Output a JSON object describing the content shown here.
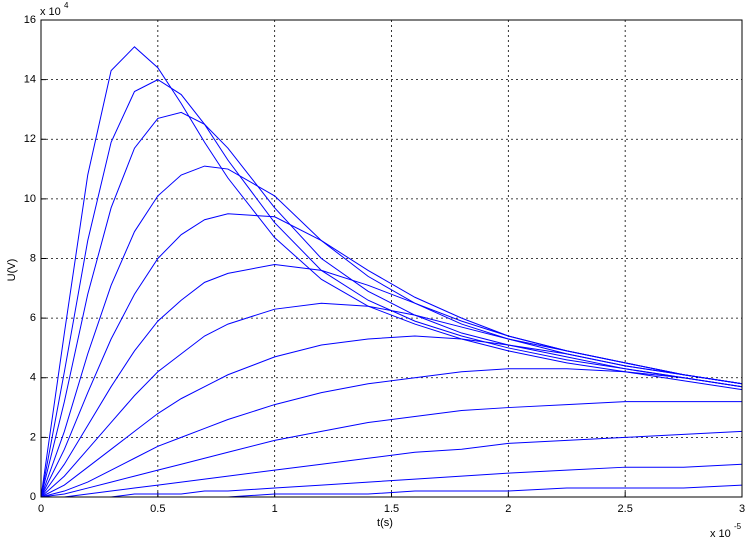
{
  "chart_data": {
    "type": "line",
    "x_label": "t(s)",
    "y_label": "U(V)",
    "x_multiplier": "x 10",
    "x_exponent": "-5",
    "y_multiplier": "x 10",
    "y_exponent": "4",
    "color": "#0000ff",
    "grid": true,
    "xlim": [
      0,
      3
    ],
    "xticks": [
      0,
      0.5,
      1,
      1.5,
      2,
      2.5,
      3
    ],
    "ylim": [
      0,
      16
    ],
    "yticks": [
      0,
      2,
      4,
      6,
      8,
      10,
      12,
      14,
      16
    ],
    "x": [
      0,
      0.1,
      0.2,
      0.3,
      0.4,
      0.5,
      0.6,
      0.7,
      0.8,
      1.0,
      1.2,
      1.4,
      1.6,
      1.8,
      2.0,
      2.25,
      2.5,
      2.75,
      3.0
    ],
    "series": [
      {
        "values": [
          0,
          5.5,
          10.8,
          14.3,
          15.1,
          14.4,
          13.2,
          11.9,
          10.7,
          8.7,
          7.3,
          6.4,
          5.8,
          5.3,
          4.9,
          4.5,
          4.2,
          3.9,
          3.6
        ]
      },
      {
        "values": [
          0,
          4.2,
          8.6,
          11.9,
          13.6,
          14.0,
          13.5,
          12.5,
          11.3,
          9.2,
          7.6,
          6.6,
          5.9,
          5.4,
          5.0,
          4.6,
          4.3,
          4.0,
          3.7
        ]
      },
      {
        "values": [
          0,
          3.2,
          6.8,
          9.7,
          11.7,
          12.7,
          12.9,
          12.5,
          11.7,
          9.7,
          8.0,
          6.9,
          6.1,
          5.5,
          5.1,
          4.7,
          4.3,
          4.0,
          3.7
        ]
      },
      {
        "values": [
          0,
          2.2,
          4.8,
          7.1,
          8.9,
          10.1,
          10.8,
          11.1,
          11.0,
          10.1,
          8.6,
          7.4,
          6.5,
          5.8,
          5.3,
          4.8,
          4.4,
          4.1,
          3.8
        ]
      },
      {
        "values": [
          0,
          1.6,
          3.5,
          5.3,
          6.8,
          8.0,
          8.8,
          9.3,
          9.5,
          9.4,
          8.6,
          7.6,
          6.7,
          6.0,
          5.4,
          4.9,
          4.5,
          4.1,
          3.8
        ]
      },
      {
        "values": [
          0,
          1.1,
          2.4,
          3.7,
          4.9,
          5.9,
          6.6,
          7.2,
          7.5,
          7.8,
          7.6,
          7.1,
          6.5,
          5.9,
          5.4,
          4.9,
          4.5,
          4.1,
          3.8
        ]
      },
      {
        "values": [
          0,
          0.7,
          1.6,
          2.5,
          3.4,
          4.2,
          4.8,
          5.4,
          5.8,
          6.3,
          6.5,
          6.4,
          6.1,
          5.7,
          5.3,
          4.9,
          4.5,
          4.1,
          3.8
        ]
      },
      {
        "values": [
          0,
          0.4,
          1.0,
          1.6,
          2.2,
          2.8,
          3.3,
          3.7,
          4.1,
          4.7,
          5.1,
          5.3,
          5.4,
          5.3,
          5.1,
          4.8,
          4.4,
          4.1,
          3.8
        ]
      },
      {
        "values": [
          0,
          0.2,
          0.5,
          0.9,
          1.3,
          1.7,
          2.0,
          2.3,
          2.6,
          3.1,
          3.5,
          3.8,
          4.0,
          4.2,
          4.3,
          4.3,
          4.2,
          4.0,
          3.7
        ]
      },
      {
        "values": [
          0,
          0.1,
          0.3,
          0.5,
          0.7,
          0.9,
          1.1,
          1.3,
          1.5,
          1.9,
          2.2,
          2.5,
          2.7,
          2.9,
          3.0,
          3.1,
          3.2,
          3.2,
          3.2
        ]
      },
      {
        "values": [
          0,
          0,
          0.1,
          0.2,
          0.3,
          0.4,
          0.5,
          0.6,
          0.7,
          0.9,
          1.1,
          1.3,
          1.5,
          1.6,
          1.8,
          1.9,
          2.0,
          2.1,
          2.2
        ]
      },
      {
        "values": [
          0,
          0,
          0,
          0,
          0.1,
          0.1,
          0.1,
          0.2,
          0.2,
          0.3,
          0.4,
          0.5,
          0.6,
          0.7,
          0.8,
          0.9,
          1.0,
          1.0,
          1.1
        ]
      },
      {
        "values": [
          0,
          0,
          0,
          0,
          0,
          0,
          0,
          0,
          0,
          0.1,
          0.1,
          0.1,
          0.2,
          0.2,
          0.2,
          0.3,
          0.3,
          0.3,
          0.4
        ]
      }
    ]
  }
}
